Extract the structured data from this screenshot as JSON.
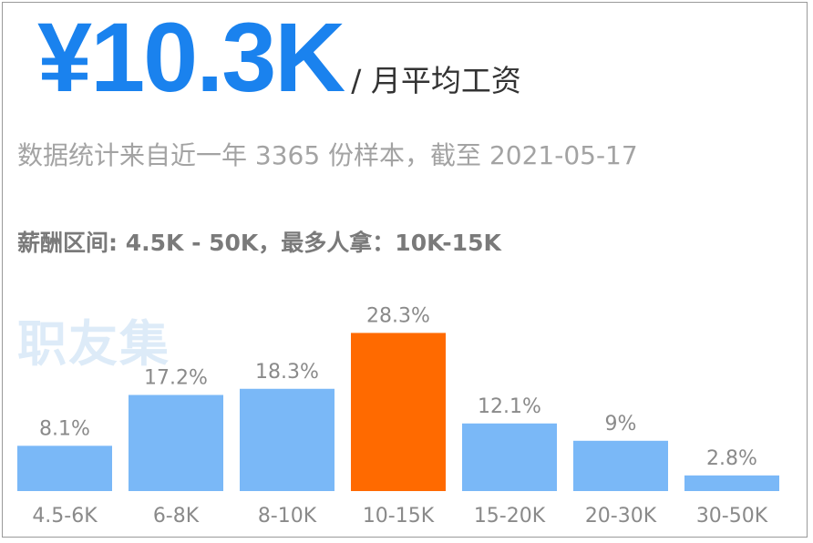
{
  "headline": {
    "amount": "¥10.3K",
    "unit": "/ 月平均工资"
  },
  "summary": "数据统计来自近一年 3365 份样本，截至 2021-05-17",
  "salary_range": "薪酬区间: 4.5K - 50K，最多人拿：10K-15K",
  "watermark": "职友集",
  "colors": {
    "accent": "#1a82ee",
    "bar": "#7ab8f7",
    "highlight_bar": "#ff6a00",
    "muted_text": "#8a8a8a"
  },
  "chart_data": {
    "type": "bar",
    "categories": [
      "4.5-6K",
      "6-8K",
      "8-10K",
      "10-15K",
      "15-20K",
      "20-30K",
      "30-50K"
    ],
    "values": [
      8.1,
      17.2,
      18.3,
      28.3,
      12.1,
      9,
      2.8
    ],
    "value_labels": [
      "8.1%",
      "17.2%",
      "18.3%",
      "28.3%",
      "12.1%",
      "9%",
      "2.8%"
    ],
    "highlight_index": 3,
    "ylim": [
      0,
      30
    ],
    "title": "",
    "xlabel": "",
    "ylabel": "",
    "grid": false,
    "legend": "none"
  }
}
